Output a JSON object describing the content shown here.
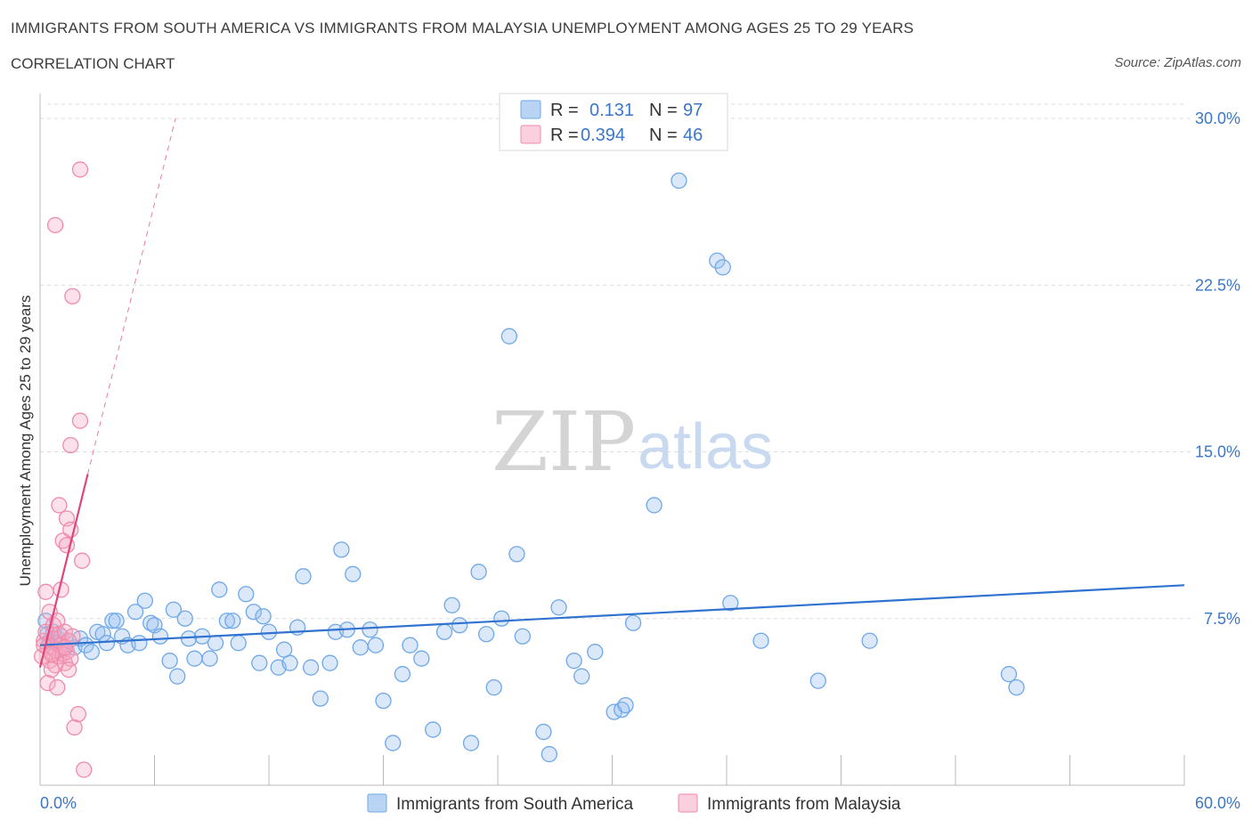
{
  "header": {
    "title": "IMMIGRANTS FROM SOUTH AMERICA VS IMMIGRANTS FROM MALAYSIA UNEMPLOYMENT AMONG AGES 25 TO 29 YEARS",
    "subtitle": "CORRELATION CHART",
    "source": "Source: ZipAtlas.com"
  },
  "watermark": {
    "zip": "ZIP",
    "atlas": "atlas"
  },
  "legend": {
    "south_america": {
      "r_label": "R =",
      "r_value": "0.131",
      "n_label": "N =",
      "n_value": "97"
    },
    "malaysia": {
      "r_label": "R =",
      "r_value": "0.394",
      "n_label": "N =",
      "n_value": "46"
    }
  },
  "colors": {
    "south_america": "#6fa8e8",
    "south_america_fill": "rgba(150,190,240,0.35)",
    "south_america_line": "#2f72d0",
    "malaysia": "#f08aaa",
    "malaysia_fill": "rgba(245,170,195,0.35)",
    "malaysia_line": "#e0457a",
    "grid": "#dcdcdc",
    "tick_label": "#3b76c8"
  },
  "chart_data": {
    "type": "scatter",
    "title": "IMMIGRANTS FROM SOUTH AMERICA VS IMMIGRANTS FROM MALAYSIA UNEMPLOYMENT AMONG AGES 25 TO 29 YEARS",
    "xlabel": "",
    "ylabel": "Unemployment Among Ages 25 to 29 years",
    "xlim": [
      0,
      60
    ],
    "ylim": [
      0,
      30
    ],
    "x_tick_labels": [
      "0.0%",
      "60.0%"
    ],
    "y_ticks": [
      7.5,
      15.0,
      22.5,
      30.0
    ],
    "y_tick_labels": [
      "7.5%",
      "15.0%",
      "22.5%",
      "30.0%"
    ],
    "grid": true,
    "legend_position": "top-center",
    "series": [
      {
        "name": "Immigrants from South America",
        "r": 0.131,
        "n": 97,
        "trend": {
          "x": [
            0,
            60
          ],
          "y": [
            6.3,
            9.0
          ],
          "style": "solid"
        },
        "points": [
          [
            0.3,
            7.4
          ],
          [
            0.4,
            6.8
          ],
          [
            0.5,
            6.5
          ],
          [
            0.6,
            6.2
          ],
          [
            0.7,
            6.9
          ],
          [
            0.8,
            6.4
          ],
          [
            0.9,
            6.6
          ],
          [
            1.0,
            6.3
          ],
          [
            1.1,
            6.7
          ],
          [
            1.2,
            6.1
          ],
          [
            1.5,
            6.5
          ],
          [
            1.8,
            6.2
          ],
          [
            2.1,
            6.6
          ],
          [
            2.4,
            6.3
          ],
          [
            2.7,
            6.0
          ],
          [
            3.0,
            6.9
          ],
          [
            3.3,
            6.8
          ],
          [
            3.5,
            6.4
          ],
          [
            3.8,
            7.4
          ],
          [
            4.0,
            7.4
          ],
          [
            4.3,
            6.7
          ],
          [
            4.6,
            6.3
          ],
          [
            5.0,
            7.8
          ],
          [
            5.2,
            6.4
          ],
          [
            5.5,
            8.3
          ],
          [
            5.8,
            7.3
          ],
          [
            6.0,
            7.2
          ],
          [
            6.3,
            6.7
          ],
          [
            6.8,
            5.6
          ],
          [
            7.0,
            7.9
          ],
          [
            7.2,
            4.9
          ],
          [
            7.6,
            7.5
          ],
          [
            7.8,
            6.6
          ],
          [
            8.1,
            5.7
          ],
          [
            8.5,
            6.7
          ],
          [
            8.9,
            5.7
          ],
          [
            9.2,
            6.4
          ],
          [
            9.4,
            8.8
          ],
          [
            9.8,
            7.4
          ],
          [
            10.1,
            7.4
          ],
          [
            10.4,
            6.4
          ],
          [
            10.8,
            8.6
          ],
          [
            11.2,
            7.8
          ],
          [
            11.5,
            5.5
          ],
          [
            11.7,
            7.6
          ],
          [
            12.0,
            6.9
          ],
          [
            12.5,
            5.3
          ],
          [
            12.8,
            6.1
          ],
          [
            13.1,
            5.5
          ],
          [
            13.5,
            7.1
          ],
          [
            13.8,
            9.4
          ],
          [
            14.2,
            5.3
          ],
          [
            14.7,
            3.9
          ],
          [
            15.2,
            5.5
          ],
          [
            15.5,
            6.9
          ],
          [
            15.8,
            10.6
          ],
          [
            16.1,
            7.0
          ],
          [
            16.4,
            9.5
          ],
          [
            16.8,
            6.2
          ],
          [
            17.3,
            7.0
          ],
          [
            17.6,
            6.3
          ],
          [
            18.0,
            3.8
          ],
          [
            18.5,
            1.9
          ],
          [
            19.0,
            5.0
          ],
          [
            19.4,
            6.3
          ],
          [
            20.0,
            5.7
          ],
          [
            20.6,
            2.5
          ],
          [
            21.2,
            6.9
          ],
          [
            21.6,
            8.1
          ],
          [
            22.0,
            7.2
          ],
          [
            22.6,
            1.9
          ],
          [
            23.0,
            9.6
          ],
          [
            23.4,
            6.8
          ],
          [
            23.8,
            4.4
          ],
          [
            24.2,
            7.5
          ],
          [
            24.6,
            20.2
          ],
          [
            25.0,
            10.4
          ],
          [
            25.3,
            6.7
          ],
          [
            26.4,
            2.4
          ],
          [
            26.7,
            1.4
          ],
          [
            27.2,
            8.0
          ],
          [
            28.0,
            5.6
          ],
          [
            28.4,
            4.9
          ],
          [
            29.1,
            6.0
          ],
          [
            30.1,
            3.3
          ],
          [
            30.5,
            3.4
          ],
          [
            30.7,
            3.6
          ],
          [
            31.1,
            7.3
          ],
          [
            32.2,
            12.6
          ],
          [
            33.5,
            27.2
          ],
          [
            35.5,
            23.6
          ],
          [
            35.8,
            23.3
          ],
          [
            36.2,
            8.2
          ],
          [
            37.8,
            6.5
          ],
          [
            40.8,
            4.7
          ],
          [
            43.5,
            6.5
          ],
          [
            50.8,
            5.0
          ],
          [
            51.2,
            4.4
          ]
        ]
      },
      {
        "name": "Immigrants from Malaysia",
        "r": 0.394,
        "n": 46,
        "trend": {
          "x": [
            0,
            2.5
          ],
          "y": [
            5.3,
            14.0
          ],
          "style": "solid",
          "extension": {
            "x": [
              2.5,
              7.1
            ],
            "y": [
              14.0,
              30.0
            ],
            "style": "dashed"
          }
        },
        "points": [
          [
            0.1,
            5.8
          ],
          [
            0.2,
            6.5
          ],
          [
            0.3,
            6.9
          ],
          [
            0.4,
            6.2
          ],
          [
            0.5,
            5.6
          ],
          [
            0.5,
            7.8
          ],
          [
            0.6,
            6.0
          ],
          [
            0.7,
            7.2
          ],
          [
            0.7,
            6.6
          ],
          [
            0.8,
            6.1
          ],
          [
            0.8,
            5.4
          ],
          [
            0.9,
            7.4
          ],
          [
            0.9,
            6.4
          ],
          [
            1.0,
            5.8
          ],
          [
            1.0,
            6.8
          ],
          [
            1.1,
            6.3
          ],
          [
            1.2,
            5.9
          ],
          [
            1.3,
            6.9
          ],
          [
            1.3,
            5.5
          ],
          [
            1.4,
            6.0
          ],
          [
            1.5,
            6.5
          ],
          [
            1.6,
            5.7
          ],
          [
            0.4,
            4.6
          ],
          [
            0.6,
            5.2
          ],
          [
            0.9,
            4.4
          ],
          [
            1.1,
            8.8
          ],
          [
            1.2,
            11.0
          ],
          [
            1.0,
            12.6
          ],
          [
            1.4,
            12.0
          ],
          [
            1.4,
            10.8
          ],
          [
            1.6,
            11.5
          ],
          [
            1.7,
            6.7
          ],
          [
            1.5,
            5.2
          ],
          [
            1.6,
            15.3
          ],
          [
            1.7,
            22.0
          ],
          [
            1.8,
            2.6
          ],
          [
            2.0,
            3.2
          ],
          [
            2.1,
            16.4
          ],
          [
            2.2,
            10.1
          ],
          [
            2.1,
            27.7
          ],
          [
            0.8,
            25.2
          ],
          [
            0.3,
            8.7
          ],
          [
            0.2,
            6.3
          ],
          [
            1.3,
            6.2
          ],
          [
            0.6,
            5.9
          ],
          [
            2.3,
            0.7
          ]
        ]
      }
    ]
  },
  "bottom_legend": {
    "south_america_label": "Immigrants from South America",
    "malaysia_label": "Immigrants from Malaysia"
  }
}
